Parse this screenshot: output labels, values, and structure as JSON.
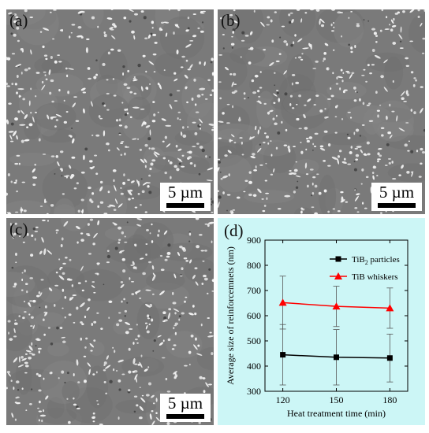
{
  "panels": {
    "a": {
      "label": "(a)",
      "scale_bar": "5 µm"
    },
    "b": {
      "label": "(b)",
      "scale_bar": "5 µm"
    },
    "c": {
      "label": "(c)",
      "scale_bar": "5 µm"
    },
    "d": {
      "label": "(d)"
    }
  },
  "colors": {
    "sem_background": "#7a7a7a",
    "particles": "#f2f2f2",
    "chart_background": "#ccf6f6",
    "series_tib2": "#000000",
    "series_tib": "#ff0000"
  },
  "chart_data": {
    "type": "line",
    "xlabel": "Heat treatment time (min)",
    "ylabel": "Average size of reinforcemnets (nm)",
    "x": [
      120,
      150,
      180
    ],
    "xticks": [
      "120",
      "150",
      "180"
    ],
    "xlim": [
      110,
      190
    ],
    "ylim": [
      300,
      900
    ],
    "yticks": [
      "300",
      "400",
      "500",
      "600",
      "700",
      "800",
      "900"
    ],
    "grid": false,
    "legend_position": "top-right",
    "series": [
      {
        "name": "TiB2 particles",
        "name_main": "TiB",
        "name_sub": "2",
        "name_rest": " particles",
        "marker": "square",
        "color": "#000000",
        "values": [
          445,
          435,
          432
        ],
        "errors": [
          120,
          110,
          95
        ]
      },
      {
        "name": "TiB whiskers",
        "marker": "triangle",
        "color": "#ff0000",
        "values": [
          652,
          637,
          630
        ],
        "errors": [
          105,
          80,
          80
        ]
      }
    ]
  }
}
